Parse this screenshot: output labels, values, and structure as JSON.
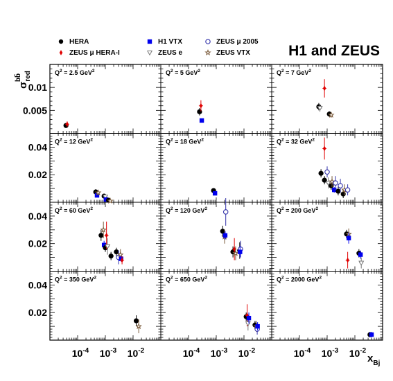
{
  "chart_data": {
    "type": "scatter",
    "title": "H1 and ZEUS",
    "xlabel": "x_Bj",
    "ylabel": "σ_red^bb̄",
    "x_scale": "log",
    "xlim": [
      1e-05,
      0.1
    ],
    "x_ticks": [
      {
        "value": 0.0001,
        "base": "10",
        "exp": "-4"
      },
      {
        "value": 0.001,
        "base": "10",
        "exp": "-3"
      },
      {
        "value": 0.01,
        "base": "10",
        "exp": "-2"
      }
    ],
    "row_ylims": [
      [
        0,
        0.015
      ],
      [
        0,
        0.05
      ],
      [
        0,
        0.05
      ],
      [
        0,
        0.05
      ]
    ],
    "row_y_ticks": [
      [
        {
          "value": 0.005,
          "label": "0.005"
        },
        {
          "value": 0.01,
          "label": "0.01"
        }
      ],
      [
        {
          "value": 0.02,
          "label": "0.02"
        },
        {
          "value": 0.04,
          "label": "0.04"
        }
      ],
      [
        {
          "value": 0.02,
          "label": "0.02"
        },
        {
          "value": 0.04,
          "label": "0.04"
        }
      ],
      [
        {
          "value": 0.02,
          "label": "0.02"
        },
        {
          "value": 0.04,
          "label": "0.04"
        }
      ]
    ],
    "series_styles": [
      {
        "name": "HERA",
        "marker": "circle",
        "color": "#000000"
      },
      {
        "name": "ZEUS μ HERA-I",
        "marker": "diamond",
        "color": "#e00000"
      },
      {
        "name": "H1 VTX",
        "marker": "square",
        "color": "#0000ee"
      },
      {
        "name": "ZEUS e",
        "marker": "triangle-down-open",
        "color": "#777777"
      },
      {
        "name": "ZEUS μ 2005",
        "marker": "circle-open",
        "color": "#3333aa"
      },
      {
        "name": "ZEUS VTX",
        "marker": "star-open",
        "color": "#7a5a3a"
      }
    ],
    "panels": [
      {
        "label": "Q",
        "sup": "2",
        "value": " = 2.5 GeV",
        "unit_sup": "2",
        "row": 0,
        "col": 0,
        "points": [
          {
            "s": 0,
            "x": 3.8e-05,
            "y": 0.0017,
            "ey": 0.0005
          },
          {
            "s": 1,
            "x": 4.2e-05,
            "y": 0.002,
            "ey": 0.0006
          }
        ]
      },
      {
        "label": "Q",
        "sup": "2",
        "value": " = 5 GeV",
        "unit_sup": "2",
        "row": 0,
        "col": 1,
        "points": [
          {
            "s": 0,
            "x": 0.00025,
            "y": 0.0047,
            "ey": 0.0008
          },
          {
            "s": 1,
            "x": 0.00028,
            "y": 0.006,
            "ey": 0.0012
          },
          {
            "s": 2,
            "x": 0.0003,
            "y": 0.0028,
            "ey": 0.0004
          }
        ]
      },
      {
        "label": "Q",
        "sup": "2",
        "value": " = 7 GeV",
        "unit_sup": "2",
        "row": 0,
        "col": 2,
        "points": [
          {
            "s": 0,
            "x": 0.0005,
            "y": 0.0058,
            "ey": 0.0008
          },
          {
            "s": 1,
            "x": 0.0008,
            "y": 0.0098,
            "ey": 0.002
          },
          {
            "s": 3,
            "x": 0.00055,
            "y": 0.0055,
            "ey": 0.0008
          },
          {
            "s": 0,
            "x": 0.0012,
            "y": 0.0042,
            "ey": 0.0006
          },
          {
            "s": 5,
            "x": 0.0014,
            "y": 0.004,
            "ey": 0.0006
          }
        ]
      },
      {
        "label": "Q",
        "sup": "2",
        "value": " = 12 GeV",
        "unit_sup": "2",
        "row": 1,
        "col": 0,
        "points": [
          {
            "s": 0,
            "x": 0.00045,
            "y": 0.0075,
            "ey": 0.002
          },
          {
            "s": 2,
            "x": 0.0005,
            "y": 0.005,
            "ey": 0.0015
          },
          {
            "s": 5,
            "x": 0.00055,
            "y": 0.007,
            "ey": 0.002
          },
          {
            "s": 0,
            "x": 0.0009,
            "y": 0.0045,
            "ey": 0.0015
          },
          {
            "s": 3,
            "x": 0.001,
            "y": 0.004,
            "ey": 0.002
          },
          {
            "s": 2,
            "x": 0.00105,
            "y": 0.002,
            "ey": 0.0008
          },
          {
            "s": 0,
            "x": 0.0013,
            "y": 0.0015,
            "ey": 0.0008
          },
          {
            "s": 5,
            "x": 0.0015,
            "y": 0.001,
            "ey": 0.0006
          }
        ]
      },
      {
        "label": "Q",
        "sup": "2",
        "value": " = 18 GeV",
        "unit_sup": "2",
        "row": 1,
        "col": 1,
        "points": [
          {
            "s": 0,
            "x": 0.0008,
            "y": 0.0085,
            "ey": 0.0008
          },
          {
            "s": 2,
            "x": 0.0009,
            "y": 0.0065,
            "ey": 0.0008
          }
        ]
      },
      {
        "label": "Q",
        "sup": "2",
        "value": " = 32 GeV",
        "unit_sup": "2",
        "row": 1,
        "col": 2,
        "points": [
          {
            "s": 0,
            "x": 0.0006,
            "y": 0.021,
            "ey": 0.003
          },
          {
            "s": 1,
            "x": 0.0008,
            "y": 0.039,
            "ey": 0.008
          },
          {
            "s": 0,
            "x": 0.0008,
            "y": 0.016,
            "ey": 0.003
          },
          {
            "s": 4,
            "x": 0.001,
            "y": 0.022,
            "ey": 0.004
          },
          {
            "s": 3,
            "x": 0.0011,
            "y": 0.014,
            "ey": 0.004
          },
          {
            "s": 0,
            "x": 0.0014,
            "y": 0.012,
            "ey": 0.003
          },
          {
            "s": 5,
            "x": 0.0015,
            "y": 0.015,
            "ey": 0.004
          },
          {
            "s": 2,
            "x": 0.0018,
            "y": 0.009,
            "ey": 0.002
          },
          {
            "s": 4,
            "x": 0.002,
            "y": 0.014,
            "ey": 0.005
          },
          {
            "s": 0,
            "x": 0.0025,
            "y": 0.008,
            "ey": 0.003
          },
          {
            "s": 4,
            "x": 0.003,
            "y": 0.012,
            "ey": 0.005
          },
          {
            "s": 0,
            "x": 0.0038,
            "y": 0.006,
            "ey": 0.003
          },
          {
            "s": 5,
            "x": 0.0042,
            "y": 0.009,
            "ey": 0.004
          },
          {
            "s": 4,
            "x": 0.0055,
            "y": 0.009,
            "ey": 0.004
          }
        ]
      },
      {
        "label": "Q",
        "sup": "2",
        "value": " = 60 GeV",
        "unit_sup": "2",
        "row": 2,
        "col": 0,
        "points": [
          {
            "s": 0,
            "x": 0.0007,
            "y": 0.026,
            "ey": 0.004
          },
          {
            "s": 5,
            "x": 0.00085,
            "y": 0.03,
            "ey": 0.006
          },
          {
            "s": 2,
            "x": 0.0009,
            "y": 0.019,
            "ey": 0.003
          },
          {
            "s": 0,
            "x": 0.001,
            "y": 0.017,
            "ey": 0.003
          },
          {
            "s": 1,
            "x": 0.0011,
            "y": 0.026,
            "ey": 0.01
          },
          {
            "s": 3,
            "x": 0.0012,
            "y": 0.018,
            "ey": 0.006
          },
          {
            "s": 0,
            "x": 0.0016,
            "y": 0.011,
            "ey": 0.003
          },
          {
            "s": 0,
            "x": 0.0025,
            "y": 0.014,
            "ey": 0.003
          },
          {
            "s": 4,
            "x": 0.003,
            "y": 0.01,
            "ey": 0.005
          },
          {
            "s": 5,
            "x": 0.0035,
            "y": 0.012,
            "ey": 0.004
          },
          {
            "s": 2,
            "x": 0.0037,
            "y": 0.009,
            "ey": 0.002
          },
          {
            "s": 1,
            "x": 0.004,
            "y": 0.008,
            "ey": 0.003
          }
        ]
      },
      {
        "label": "Q",
        "sup": "2",
        "value": " = 120 GeV",
        "unit_sup": "2",
        "row": 2,
        "col": 1,
        "points": [
          {
            "s": 0,
            "x": 0.0017,
            "y": 0.029,
            "ey": 0.004
          },
          {
            "s": 4,
            "x": 0.0022,
            "y": 0.043,
            "ey": 0.01
          },
          {
            "s": 5,
            "x": 0.002,
            "y": 0.025,
            "ey": 0.005
          },
          {
            "s": 2,
            "x": 0.0021,
            "y": 0.026,
            "ey": 0.003
          },
          {
            "s": 0,
            "x": 0.004,
            "y": 0.014,
            "ey": 0.004
          },
          {
            "s": 1,
            "x": 0.0045,
            "y": 0.016,
            "ey": 0.008
          },
          {
            "s": 5,
            "x": 0.005,
            "y": 0.013,
            "ey": 0.005
          },
          {
            "s": 0,
            "x": 0.007,
            "y": 0.015,
            "ey": 0.006
          },
          {
            "s": 4,
            "x": 0.0075,
            "y": 0.016,
            "ey": 0.006
          },
          {
            "s": 2,
            "x": 0.0072,
            "y": 0.014,
            "ey": 0.004
          }
        ]
      },
      {
        "label": "Q",
        "sup": "2",
        "value": " = 200 GeV",
        "unit_sup": "2",
        "row": 2,
        "col": 2,
        "points": [
          {
            "s": 0,
            "x": 0.005,
            "y": 0.027,
            "ey": 0.003
          },
          {
            "s": 5,
            "x": 0.006,
            "y": 0.027,
            "ey": 0.004
          },
          {
            "s": 2,
            "x": 0.006,
            "y": 0.024,
            "ey": 0.004
          },
          {
            "s": 1,
            "x": 0.0055,
            "y": 0.008,
            "ey": 0.006
          },
          {
            "s": 0,
            "x": 0.014,
            "y": 0.013,
            "ey": 0.003
          },
          {
            "s": 2,
            "x": 0.016,
            "y": 0.012,
            "ey": 0.003
          },
          {
            "s": 3,
            "x": 0.017,
            "y": 0.006,
            "ey": 0.004
          }
        ]
      },
      {
        "label": "Q",
        "sup": "2",
        "value": " = 350 GeV",
        "unit_sup": "2",
        "row": 3,
        "col": 0,
        "points": [
          {
            "s": 0,
            "x": 0.013,
            "y": 0.014,
            "ey": 0.004
          },
          {
            "s": 5,
            "x": 0.016,
            "y": 0.01,
            "ey": 0.005
          }
        ]
      },
      {
        "label": "Q",
        "sup": "2",
        "value": " = 650 GeV",
        "unit_sup": "2",
        "row": 3,
        "col": 1,
        "points": [
          {
            "s": 0,
            "x": 0.012,
            "y": 0.017,
            "ey": 0.003
          },
          {
            "s": 1,
            "x": 0.013,
            "y": 0.018,
            "ey": 0.008
          },
          {
            "s": 3,
            "x": 0.014,
            "y": 0.012,
            "ey": 0.005
          },
          {
            "s": 2,
            "x": 0.015,
            "y": 0.016,
            "ey": 0.004
          },
          {
            "s": 0,
            "x": 0.025,
            "y": 0.011,
            "ey": 0.003
          },
          {
            "s": 5,
            "x": 0.028,
            "y": 0.01,
            "ey": 0.004
          },
          {
            "s": 4,
            "x": 0.03,
            "y": 0.008,
            "ey": 0.004
          },
          {
            "s": 2,
            "x": 0.031,
            "y": 0.01,
            "ey": 0.003
          }
        ]
      },
      {
        "label": "Q",
        "sup": "2",
        "value": " = 2000 GeV",
        "unit_sup": "2",
        "row": 3,
        "col": 2,
        "points": [
          {
            "s": 0,
            "x": 0.035,
            "y": 0.004,
            "ey": 0.002
          },
          {
            "s": 2,
            "x": 0.04,
            "y": 0.004,
            "ey": 0.002
          }
        ]
      }
    ]
  }
}
